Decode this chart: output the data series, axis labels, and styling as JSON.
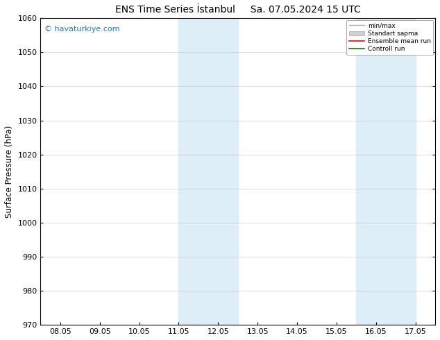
{
  "title1": "ENS Time Series İstanbul",
  "title2": "Sa. 07.05.2024 15 UTC",
  "ylabel": "Surface Pressure (hPa)",
  "ylim": [
    970,
    1060
  ],
  "yticks": [
    970,
    980,
    990,
    1000,
    1010,
    1020,
    1030,
    1040,
    1050,
    1060
  ],
  "xtick_labels": [
    "08.05",
    "09.05",
    "10.05",
    "11.05",
    "12.05",
    "13.05",
    "14.05",
    "15.05",
    "16.05",
    "17.05"
  ],
  "xtick_positions": [
    0,
    1,
    2,
    3,
    4,
    5,
    6,
    7,
    8,
    9
  ],
  "watermark": "© havaturkiye.com",
  "shade_regions": [
    {
      "xstart": 3.0,
      "xend": 4.5
    },
    {
      "xstart": 7.5,
      "xend": 9.0
    }
  ],
  "shade_color": "#ddeef8",
  "legend_items": [
    {
      "label": "min/max",
      "color": "#aaaaaa",
      "lw": 1.0
    },
    {
      "label": "Standart sapma",
      "color": "#cccccc",
      "lw": 6
    },
    {
      "label": "Ensemble mean run",
      "color": "red",
      "lw": 1.2
    },
    {
      "label": "Controll run",
      "color": "green",
      "lw": 1.2
    }
  ],
  "background_color": "#ffffff",
  "grid_color": "#cccccc",
  "xlim": [
    -0.5,
    9.5
  ]
}
